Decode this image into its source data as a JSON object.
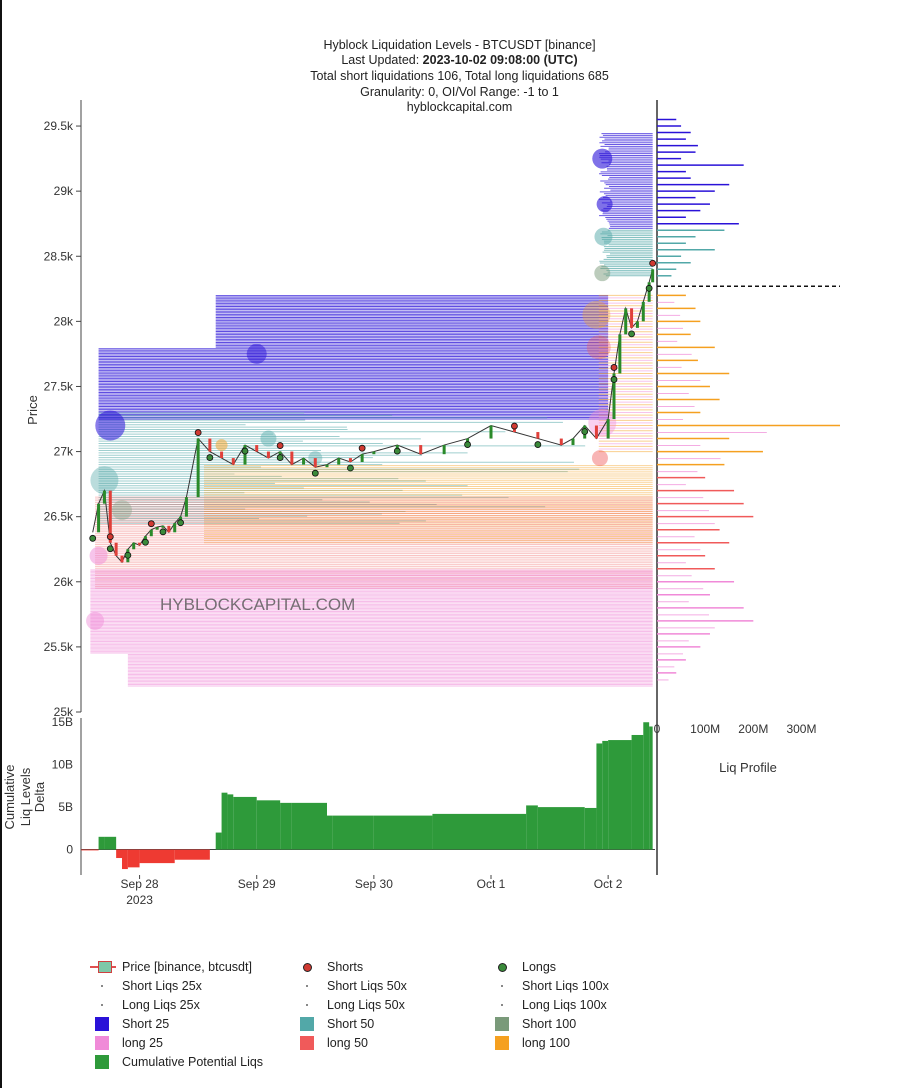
{
  "title": {
    "line1": "Hyblock Liquidation Levels - BTCUSDT [binance]",
    "line2_prefix": "Last Updated: ",
    "line2_value": "2023-10-02 09:08:00 (UTC)",
    "line3": "Total short liquidations 106, Total long liquidations 685",
    "line4": "Granularity: 0, OI/Vol Range: -1 to 1",
    "line5": "hyblockcapital.com"
  },
  "watermark": "HYBLOCKCAPITAL.COM",
  "colors": {
    "short25": "#2a12d8",
    "short50": "#52a8a8",
    "short100": "#7a9a7a",
    "long25": "#f08ad8",
    "long50": "#f05a5a",
    "long100": "#f5a020",
    "cum_pos": "#2e9a3a",
    "cum_neg": "#ee3a32",
    "price_up": "#2a8a2a",
    "price_down": "#e0403a"
  },
  "chart_data": [
    {
      "type": "line",
      "name": "price-panel",
      "ylabel": "Price",
      "ylim": [
        25000,
        29700
      ],
      "yticks": [
        25000,
        25500,
        26000,
        26500,
        27000,
        27500,
        28000,
        28500,
        29000,
        29500
      ],
      "ytick_labels": [
        "25k",
        "25.5k",
        "26k",
        "26.5k",
        "27k",
        "27.5k",
        "28k",
        "28.5k",
        "29k",
        "29.5k"
      ],
      "xlim": [
        -0.5,
        4.4
      ],
      "x": [
        -0.4,
        -0.35,
        -0.3,
        -0.25,
        -0.2,
        -0.15,
        -0.1,
        -0.05,
        0.0,
        0.05,
        0.1,
        0.15,
        0.2,
        0.25,
        0.3,
        0.35,
        0.4,
        0.5,
        0.6,
        0.7,
        0.8,
        0.9,
        1.0,
        1.1,
        1.2,
        1.3,
        1.4,
        1.5,
        1.6,
        1.7,
        1.8,
        1.9,
        2.0,
        2.2,
        2.4,
        2.6,
        2.8,
        3.0,
        3.2,
        3.4,
        3.6,
        3.7,
        3.8,
        3.9,
        4.0,
        4.05,
        4.1,
        4.15,
        4.2,
        4.25,
        4.3,
        4.35,
        4.38
      ],
      "values": [
        26380,
        26600,
        26700,
        26300,
        26200,
        26150,
        26250,
        26300,
        26280,
        26350,
        26400,
        26420,
        26430,
        26380,
        26450,
        26500,
        26650,
        27100,
        27000,
        26950,
        26900,
        27050,
        27000,
        26950,
        27000,
        26900,
        26950,
        26880,
        26900,
        26950,
        26920,
        26980,
        27000,
        27050,
        26980,
        27050,
        27100,
        27200,
        27150,
        27100,
        27050,
        27100,
        27200,
        27100,
        27250,
        27600,
        27900,
        28100,
        27950,
        28000,
        28150,
        28300,
        28400
      ],
      "series_labels": {
        "shorts": "Shorts",
        "longs": "Longs",
        "price": "Price [binance, btcusdt]"
      }
    },
    {
      "type": "area",
      "name": "cumulative-panel",
      "ylabel": "Cumulative Liq Levels Delta",
      "ylim": [
        -3000000000,
        15500000000
      ],
      "yticks": [
        0,
        5000000000,
        10000000000,
        15000000000
      ],
      "ytick_labels": [
        "0",
        "5B",
        "10B",
        "15B"
      ],
      "xlim": [
        -0.5,
        4.4
      ],
      "categories": [
        "Sep 28\n2023",
        "Sep 29",
        "Sep 30",
        "Oct 1",
        "Oct 2"
      ],
      "xtick_positions": [
        0,
        1,
        2,
        3,
        4
      ],
      "x": [
        -0.5,
        -0.35,
        -0.3,
        -0.2,
        -0.15,
        -0.1,
        0.0,
        0.3,
        0.6,
        0.65,
        0.7,
        0.75,
        0.8,
        1.0,
        1.2,
        1.3,
        1.6,
        1.65,
        2.0,
        2.5,
        3.0,
        3.3,
        3.4,
        3.8,
        3.9,
        3.95,
        4.0,
        4.2,
        4.3,
        4.35,
        4.38
      ],
      "values": [
        0,
        -100000000,
        1500000000,
        1500000000,
        -1000000000,
        -2300000000,
        -2100000000,
        -1600000000,
        -1200000000,
        0,
        2000000000,
        6700000000,
        6500000000,
        6200000000,
        5800000000,
        5500000000,
        5500000000,
        4000000000,
        4000000000,
        4000000000,
        4200000000,
        4200000000,
        5200000000,
        5000000000,
        4900000000,
        12500000000,
        12800000000,
        12900000000,
        13500000000,
        15000000000,
        14500000000
      ]
    },
    {
      "type": "bar",
      "name": "liq-profile",
      "xlabel": "Liq Profile",
      "xlim": [
        0,
        380000000
      ],
      "xticks": [
        0,
        100000000,
        200000000,
        300000000
      ],
      "xtick_labels": [
        "0",
        "100M",
        "200M",
        "300M"
      ],
      "current_price": 28270,
      "short_profile": {
        "price": [
          29550,
          29500,
          29450,
          29400,
          29350,
          29300,
          29250,
          29200,
          29150,
          29100,
          29050,
          29000,
          28950,
          28900,
          28850,
          28800,
          28750,
          28700,
          28650,
          28600,
          28550,
          28500,
          28450,
          28400,
          28350
        ],
        "values": [
          40000000,
          50000000,
          70000000,
          60000000,
          85000000,
          80000000,
          50000000,
          180000000,
          60000000,
          70000000,
          150000000,
          120000000,
          80000000,
          110000000,
          90000000,
          60000000,
          170000000,
          140000000,
          80000000,
          60000000,
          120000000,
          50000000,
          70000000,
          40000000,
          30000000
        ]
      },
      "long_profile": {
        "price": [
          28200,
          28100,
          28000,
          27900,
          27800,
          27700,
          27600,
          27500,
          27400,
          27300,
          27200,
          27100,
          27000,
          26900,
          26800,
          26700,
          26600,
          26500,
          26400,
          26300,
          26200,
          26100,
          26000,
          25900,
          25800,
          25700,
          25600,
          25500,
          25400,
          25300
        ],
        "values": [
          60000000,
          80000000,
          90000000,
          70000000,
          120000000,
          85000000,
          150000000,
          110000000,
          130000000,
          90000000,
          380000000,
          150000000,
          220000000,
          140000000,
          100000000,
          160000000,
          180000000,
          200000000,
          130000000,
          150000000,
          100000000,
          120000000,
          160000000,
          110000000,
          180000000,
          200000000,
          110000000,
          90000000,
          60000000,
          40000000
        ]
      }
    }
  ],
  "legend": [
    {
      "label": "Price [binance, btcusdt]",
      "kind": "price"
    },
    {
      "label": "Shorts",
      "kind": "dot-red"
    },
    {
      "label": "Longs",
      "kind": "dot-green"
    },
    {
      "label": "Short Liqs 25x",
      "kind": "tiny"
    },
    {
      "label": "Short Liqs 50x",
      "kind": "tiny"
    },
    {
      "label": "Short Liqs 100x",
      "kind": "tiny"
    },
    {
      "label": "Long Liqs 25x",
      "kind": "tiny"
    },
    {
      "label": "Long Liqs 50x",
      "kind": "tiny"
    },
    {
      "label": "Long Liqs 100x",
      "kind": "tiny"
    },
    {
      "label": "Short 25",
      "kind": "sq",
      "color": "#2a12d8"
    },
    {
      "label": "Short 50",
      "kind": "sq",
      "color": "#52a8a8"
    },
    {
      "label": "Short 100",
      "kind": "sq",
      "color": "#7a9a7a"
    },
    {
      "label": "long 25",
      "kind": "sq",
      "color": "#f08ad8"
    },
    {
      "label": "long 50",
      "kind": "sq",
      "color": "#f05a5a"
    },
    {
      "label": "long 100",
      "kind": "sq",
      "color": "#f5a020"
    },
    {
      "label": "Cumulative Potential Liqs",
      "kind": "sq",
      "color": "#2e9a3a"
    }
  ]
}
